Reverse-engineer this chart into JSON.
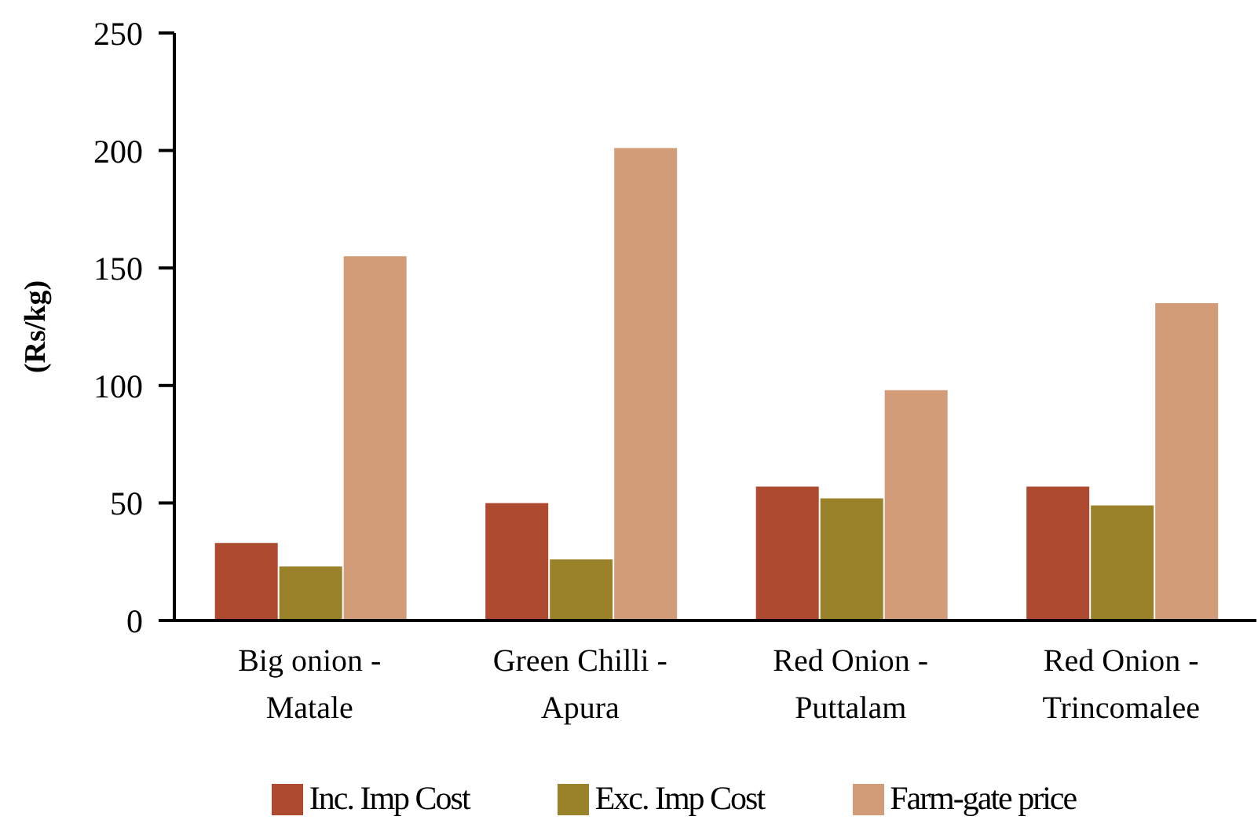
{
  "chart_data": {
    "type": "bar",
    "ylabel": "(Rs/kg)",
    "categories": [
      "Big onion - Matale",
      "Green Chilli - Apura",
      "Red Onion - Puttalam",
      "Red Onion - Trincomalee"
    ],
    "series": [
      {
        "name": "Inc. Imp Cost",
        "color": "#ad4a30",
        "values": [
          33,
          50,
          57,
          57
        ]
      },
      {
        "name": "Exc. Imp Cost",
        "color": "#9a822b",
        "values": [
          23,
          26,
          52,
          49
        ]
      },
      {
        "name": "Farm-gate price",
        "color": "#d19c77",
        "values": [
          155,
          201,
          98,
          135
        ]
      }
    ],
    "ylim": [
      0,
      250
    ],
    "yticks": [
      0,
      50,
      100,
      150,
      200,
      250
    ],
    "legend": "bottom"
  }
}
